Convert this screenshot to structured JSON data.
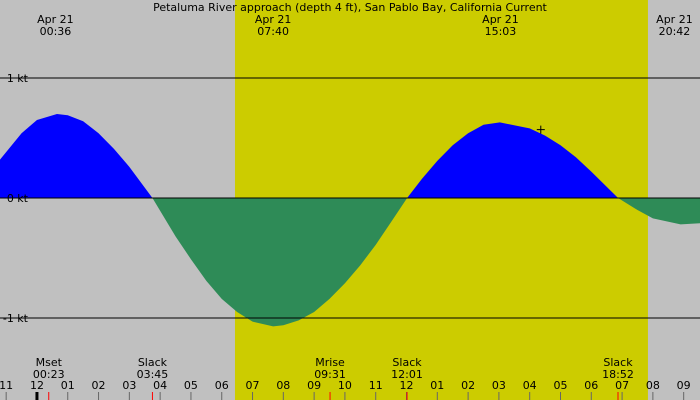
{
  "chart_data": {
    "type": "area",
    "title": "Petaluma River approach (depth 4 ft), San Pablo Bay, California Current",
    "xlim": [
      -1.2,
      21.53
    ],
    "ylim": [
      -1.683,
      1.65
    ],
    "yticks": [
      {
        "value": 1,
        "label": "1 kt"
      },
      {
        "value": 0,
        "label": "0 kt"
      },
      {
        "value": -1,
        "label": "-1 kt"
      }
    ],
    "xticks": [
      {
        "value": -1,
        "label": "11"
      },
      {
        "value": 0,
        "label": "12"
      },
      {
        "value": 1,
        "label": "01"
      },
      {
        "value": 2,
        "label": "02"
      },
      {
        "value": 3,
        "label": "03"
      },
      {
        "value": 4,
        "label": "04"
      },
      {
        "value": 5,
        "label": "05"
      },
      {
        "value": 6,
        "label": "06"
      },
      {
        "value": 7,
        "label": "07"
      },
      {
        "value": 8,
        "label": "08"
      },
      {
        "value": 9,
        "label": "09"
      },
      {
        "value": 10,
        "label": "10"
      },
      {
        "value": 11,
        "label": "11"
      },
      {
        "value": 12,
        "label": "12"
      },
      {
        "value": 13,
        "label": "01"
      },
      {
        "value": 14,
        "label": "02"
      },
      {
        "value": 15,
        "label": "03"
      },
      {
        "value": 16,
        "label": "04"
      },
      {
        "value": 17,
        "label": "05"
      },
      {
        "value": 18,
        "label": "06"
      },
      {
        "value": 19,
        "label": "07"
      },
      {
        "value": 20,
        "label": "08"
      },
      {
        "value": 21,
        "label": "09"
      }
    ],
    "daylight": [
      6.43,
      19.84
    ],
    "colors": {
      "night": "#c0c0c0",
      "day": "#cccc00",
      "flood": "#0000ff",
      "ebb": "#2e8b57"
    },
    "x": [
      -1.2,
      -0.5,
      0,
      0.65,
      1,
      1.5,
      2,
      2.5,
      3,
      3.75,
      4.5,
      5,
      5.5,
      6,
      6.5,
      7,
      7.67,
      8,
      8.5,
      9,
      9.5,
      10,
      10.5,
      11,
      11.5,
      12.02,
      12.5,
      13,
      13.5,
      14,
      14.5,
      15.03,
      16,
      16.5,
      17,
      17.5,
      18,
      18.87,
      19.5,
      20,
      20.9,
      21.53
    ],
    "values": [
      0.32,
      0.54,
      0.65,
      0.7,
      0.69,
      0.64,
      0.54,
      0.41,
      0.26,
      0,
      -0.32,
      -0.51,
      -0.69,
      -0.84,
      -0.95,
      -1.03,
      -1.07,
      -1.06,
      -1.02,
      -0.95,
      -0.84,
      -0.71,
      -0.56,
      -0.39,
      -0.2,
      0,
      0.16,
      0.31,
      0.44,
      0.54,
      0.61,
      0.63,
      0.58,
      0.52,
      0.44,
      0.34,
      0.22,
      0,
      -0.1,
      -0.17,
      -0.22,
      -0.21
    ],
    "top_labels": [
      {
        "x": 0.6,
        "date": "Apr 21",
        "time": "00:36"
      },
      {
        "x": 7.67,
        "date": "Apr 21",
        "time": "07:40"
      },
      {
        "x": 15.05,
        "date": "Apr 21",
        "time": "15:03"
      },
      {
        "x": 20.7,
        "date": "Apr 21",
        "time": "20:42"
      }
    ],
    "events": [
      {
        "x": 0.383,
        "label": "Mset",
        "time": "00:23"
      },
      {
        "x": 3.75,
        "label": "Slack",
        "time": "03:45"
      },
      {
        "x": 9.517,
        "label": "Mrise",
        "time": "09:31"
      },
      {
        "x": 12.017,
        "label": "Slack",
        "time": "12:01"
      },
      {
        "x": 18.867,
        "label": "Slack",
        "time": "18:52"
      }
    ],
    "marker": {
      "x": 16.36,
      "y": 0.57
    }
  }
}
